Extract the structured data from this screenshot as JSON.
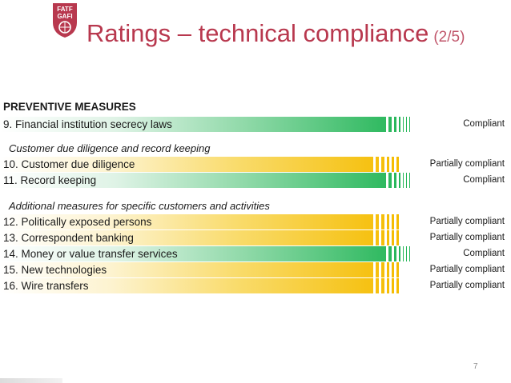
{
  "header": {
    "logo_text": [
      "FATF",
      "GAFI"
    ],
    "title": "Ratings – technical compliance",
    "title_suffix": "(2/5)"
  },
  "colors": {
    "brand": "#b8384e",
    "title_suffix": "#c0556a",
    "compliant_end": "#1fb454",
    "partially_end": "#f5bc00"
  },
  "section": "PREVENTIVE MEASURES",
  "subsections": [
    "Customer due diligence and record keeping",
    "Additional measures for specific customers and activities"
  ],
  "rows": [
    {
      "label": "9. Financial institution secrecy laws",
      "rating": "Compliant",
      "level": "compliant"
    },
    {
      "label": "10. Customer due diligence",
      "rating": "Partially compliant",
      "level": "partial"
    },
    {
      "label": "11. Record keeping",
      "rating": "Compliant",
      "level": "compliant"
    },
    {
      "label": "12. Politically exposed persons",
      "rating": "Partially compliant",
      "level": "partial"
    },
    {
      "label": "13. Correspondent banking",
      "rating": "Partially compliant",
      "level": "partial"
    },
    {
      "label": "14. Money or value transfer services",
      "rating": "Compliant",
      "level": "compliant"
    },
    {
      "label": "15. New technologies",
      "rating": "Partially compliant",
      "level": "partial"
    },
    {
      "label": "16. Wire transfers",
      "rating": "Partially compliant",
      "level": "partial"
    }
  ],
  "page_number": "7"
}
